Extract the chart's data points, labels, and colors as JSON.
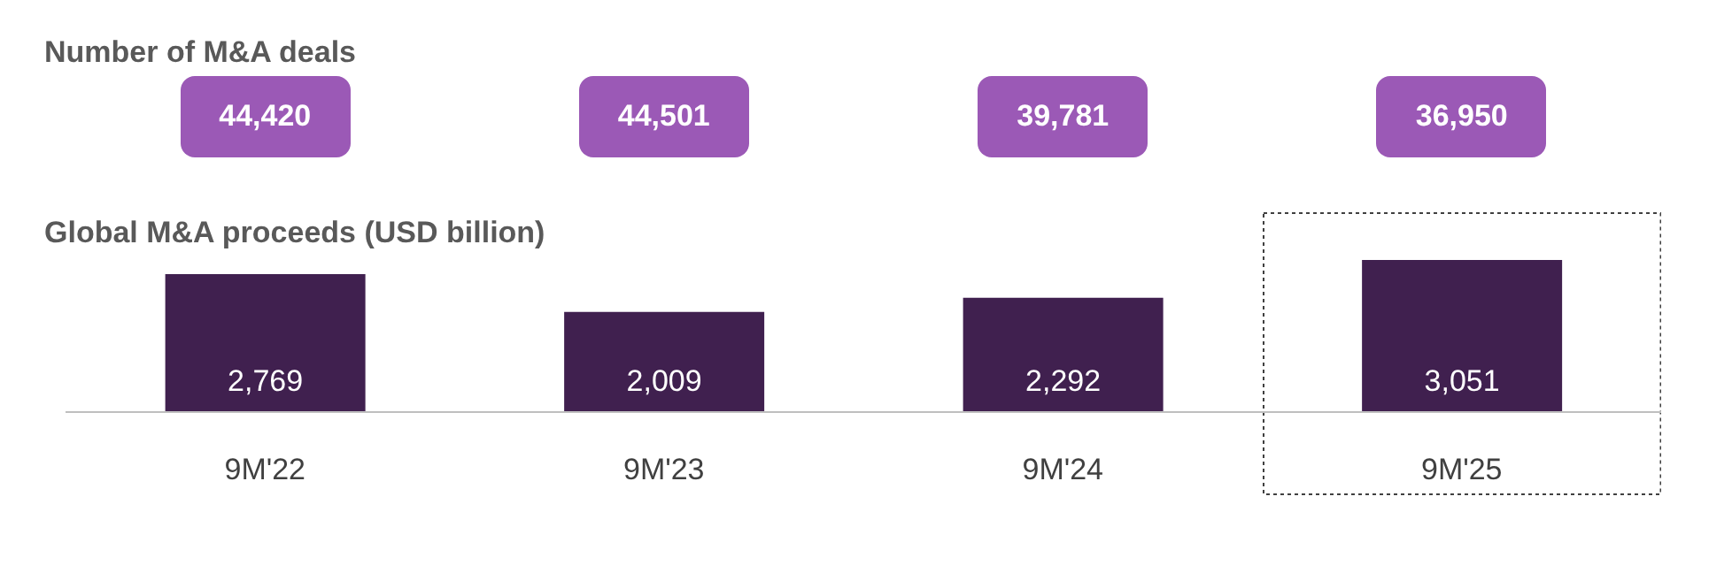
{
  "chart_data": {
    "type": "bar",
    "title": "Number of M&A deals",
    "subtitle": "Global M&A proceeds (USD billion)",
    "categories": [
      "9M'22",
      "9M'23",
      "9M'24",
      "9M'25"
    ],
    "values": [
      2769,
      2009,
      2292,
      3051
    ],
    "color": "#40204f",
    "value_labels": [
      "2,769",
      "2,009",
      "2,292",
      "3,051"
    ],
    "annotations": [
      "44,420",
      "44,501",
      "39,781",
      "36,950"
    ],
    "tick_labels": "x"
  }
}
